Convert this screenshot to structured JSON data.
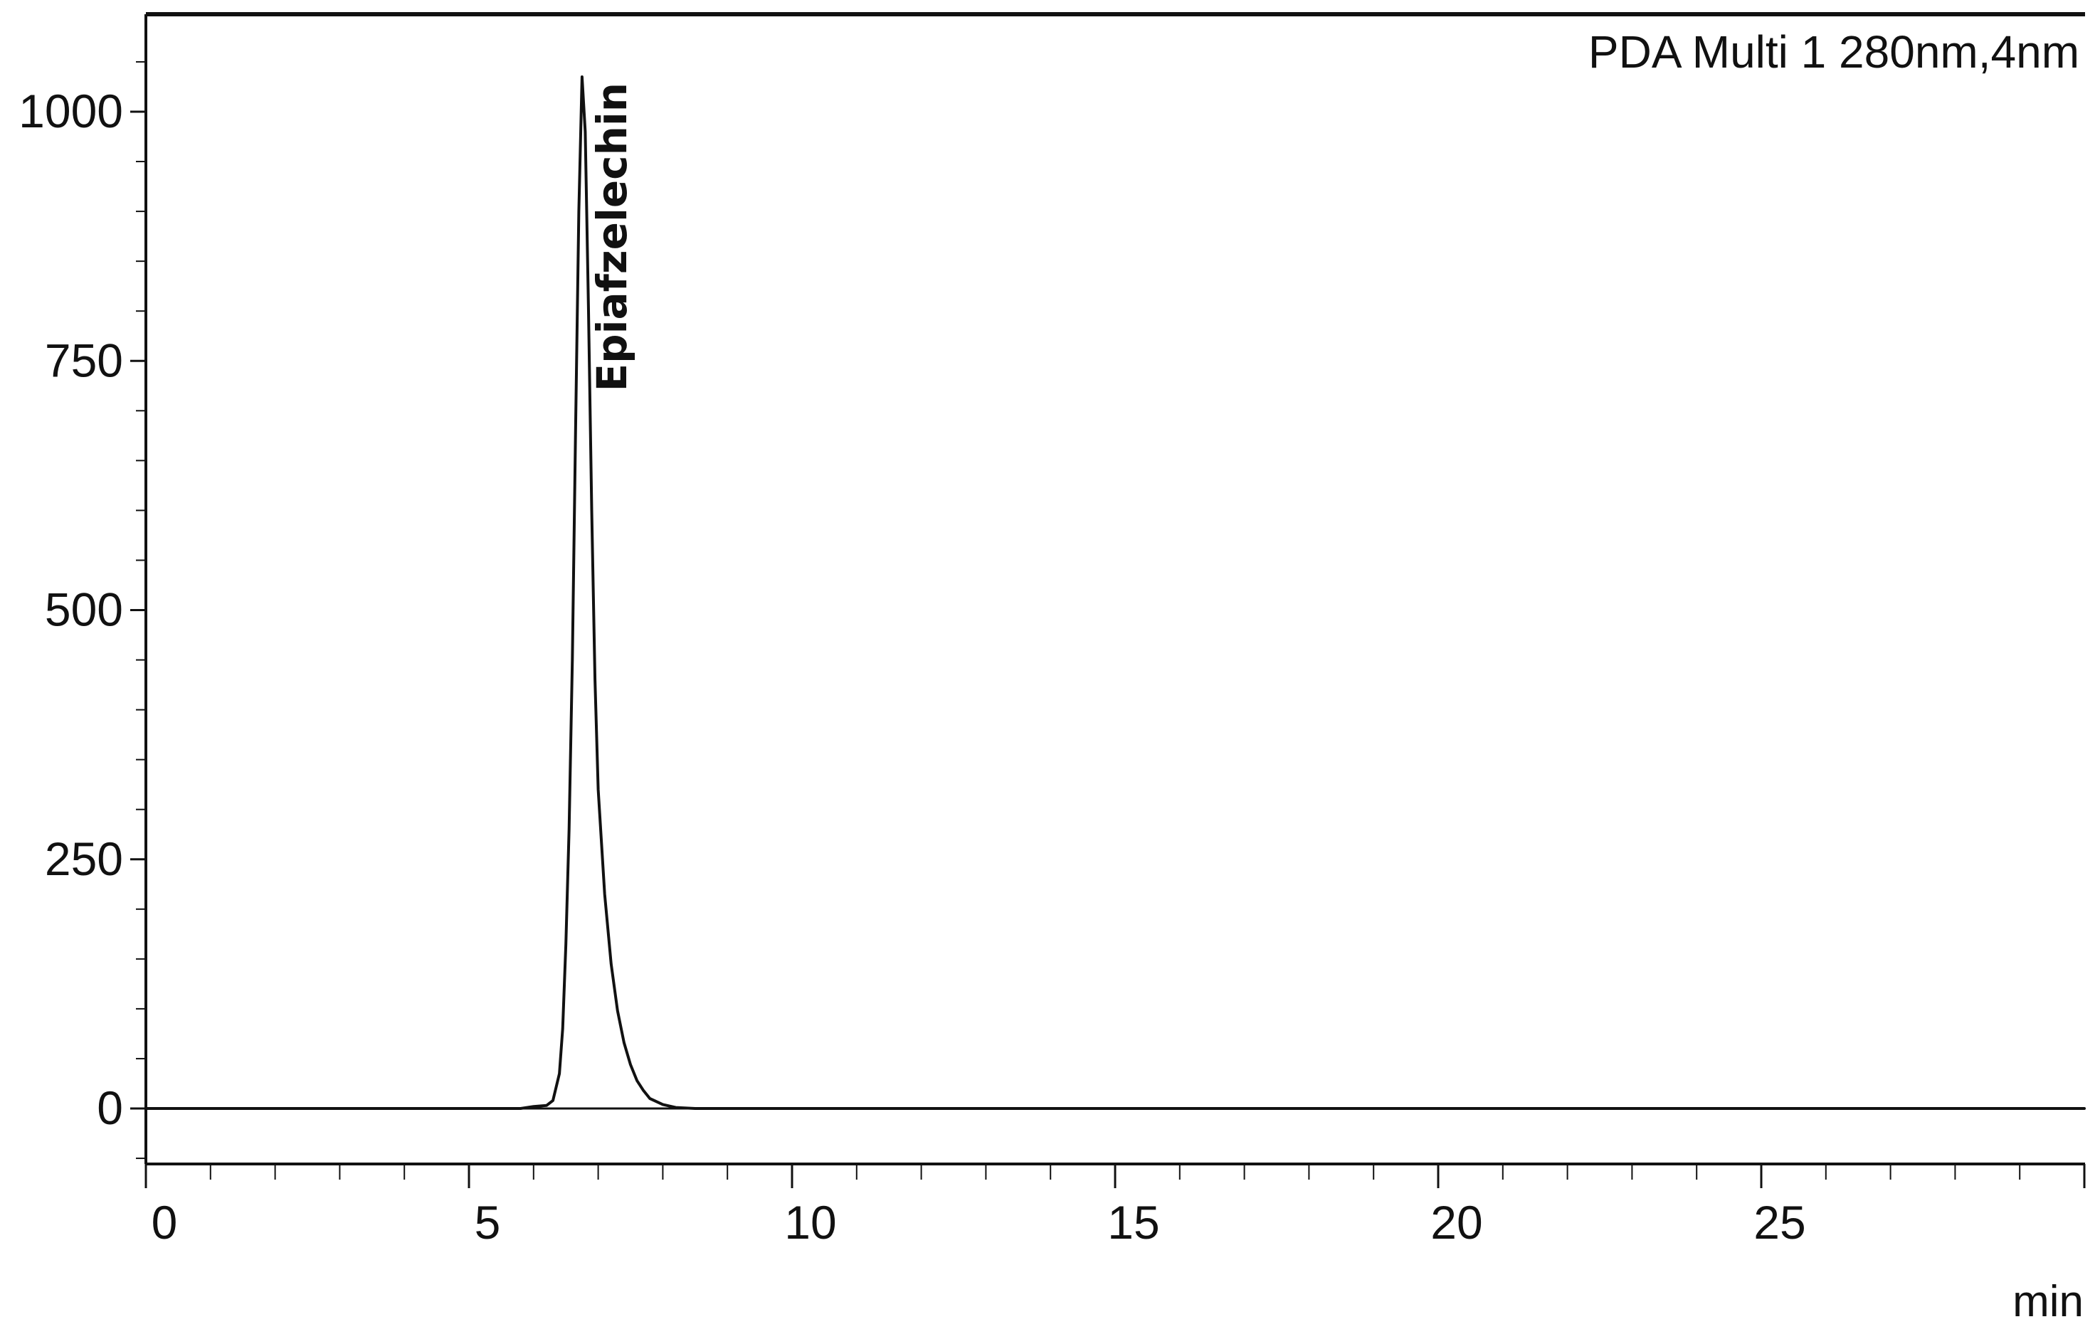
{
  "chart_data": {
    "type": "line",
    "title": "",
    "detector_label": "PDA Multi 1 280nm,4nm",
    "xlabel": "min",
    "ylabel": "",
    "xlim": [
      0,
      30
    ],
    "ylim": [
      -60,
      1090
    ],
    "x_ticks": [
      {
        "value": 0,
        "label": "0"
      },
      {
        "value": 5,
        "label": "5"
      },
      {
        "value": 10,
        "label": "10"
      },
      {
        "value": 15,
        "label": "15"
      },
      {
        "value": 20,
        "label": "20"
      },
      {
        "value": 25,
        "label": "25"
      }
    ],
    "y_ticks": [
      {
        "value": 0,
        "label": "0"
      },
      {
        "value": 250,
        "label": "250"
      },
      {
        "value": 500,
        "label": "500"
      },
      {
        "value": 750,
        "label": "750"
      },
      {
        "value": 1000,
        "label": "1000"
      }
    ],
    "series": [
      {
        "points": [
          [
            0,
            0
          ],
          [
            5.8,
            0
          ],
          [
            6.0,
            2
          ],
          [
            6.2,
            3
          ],
          [
            6.3,
            8
          ],
          [
            6.4,
            35
          ],
          [
            6.45,
            80
          ],
          [
            6.5,
            165
          ],
          [
            6.55,
            280
          ],
          [
            6.6,
            450
          ],
          [
            6.65,
            680
          ],
          [
            6.7,
            900
          ],
          [
            6.75,
            1035
          ],
          [
            6.8,
            980
          ],
          [
            6.85,
            800
          ],
          [
            6.9,
            600
          ],
          [
            6.95,
            430
          ],
          [
            7.0,
            320
          ],
          [
            7.1,
            215
          ],
          [
            7.2,
            145
          ],
          [
            7.3,
            98
          ],
          [
            7.4,
            66
          ],
          [
            7.5,
            44
          ],
          [
            7.6,
            28
          ],
          [
            7.7,
            18
          ],
          [
            7.8,
            10
          ],
          [
            8.0,
            4
          ],
          [
            8.2,
            1
          ],
          [
            8.5,
            0
          ],
          [
            30,
            0
          ]
        ]
      }
    ],
    "peaks": [
      {
        "label": "Epiafzelechin",
        "x": 6.75,
        "y": 1035
      }
    ],
    "grid": false,
    "line_color": "#111111",
    "axis_color": "#111111"
  }
}
